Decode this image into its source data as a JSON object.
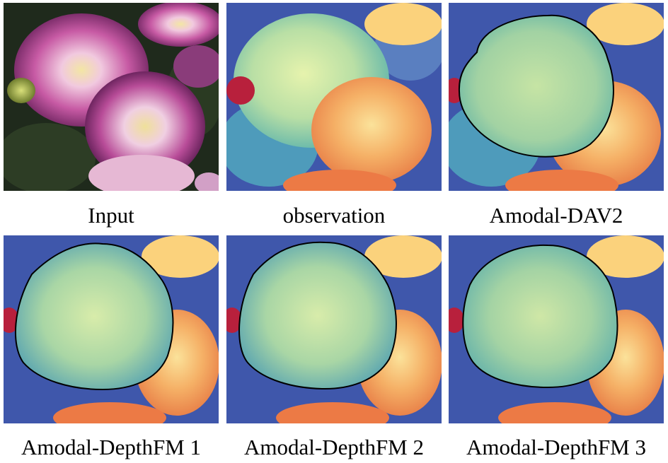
{
  "panels": [
    {
      "caption": "Input",
      "kind": "photo"
    },
    {
      "caption": "observation",
      "kind": "depth"
    },
    {
      "caption": "Amodal-DAV2",
      "kind": "depth-amodal"
    },
    {
      "caption": "Amodal-DepthFM 1",
      "kind": "depth-amodal"
    },
    {
      "caption": "Amodal-DepthFM 2",
      "kind": "depth-amodal"
    },
    {
      "caption": "Amodal-DepthFM 3",
      "kind": "depth-amodal"
    }
  ],
  "colors": {
    "photo_bg": "#23301f",
    "petal_pink": "#c0569e",
    "petal_light": "#f2c6e2",
    "flower_center": "#e8d48a",
    "depth_far": "#3a4fa6",
    "depth_mid": "#4fa2b8",
    "depth_near": "#cfe8a8",
    "depth_orange": "#f2a25a",
    "depth_red": "#b81d3a",
    "mask_outline": "#000000"
  }
}
